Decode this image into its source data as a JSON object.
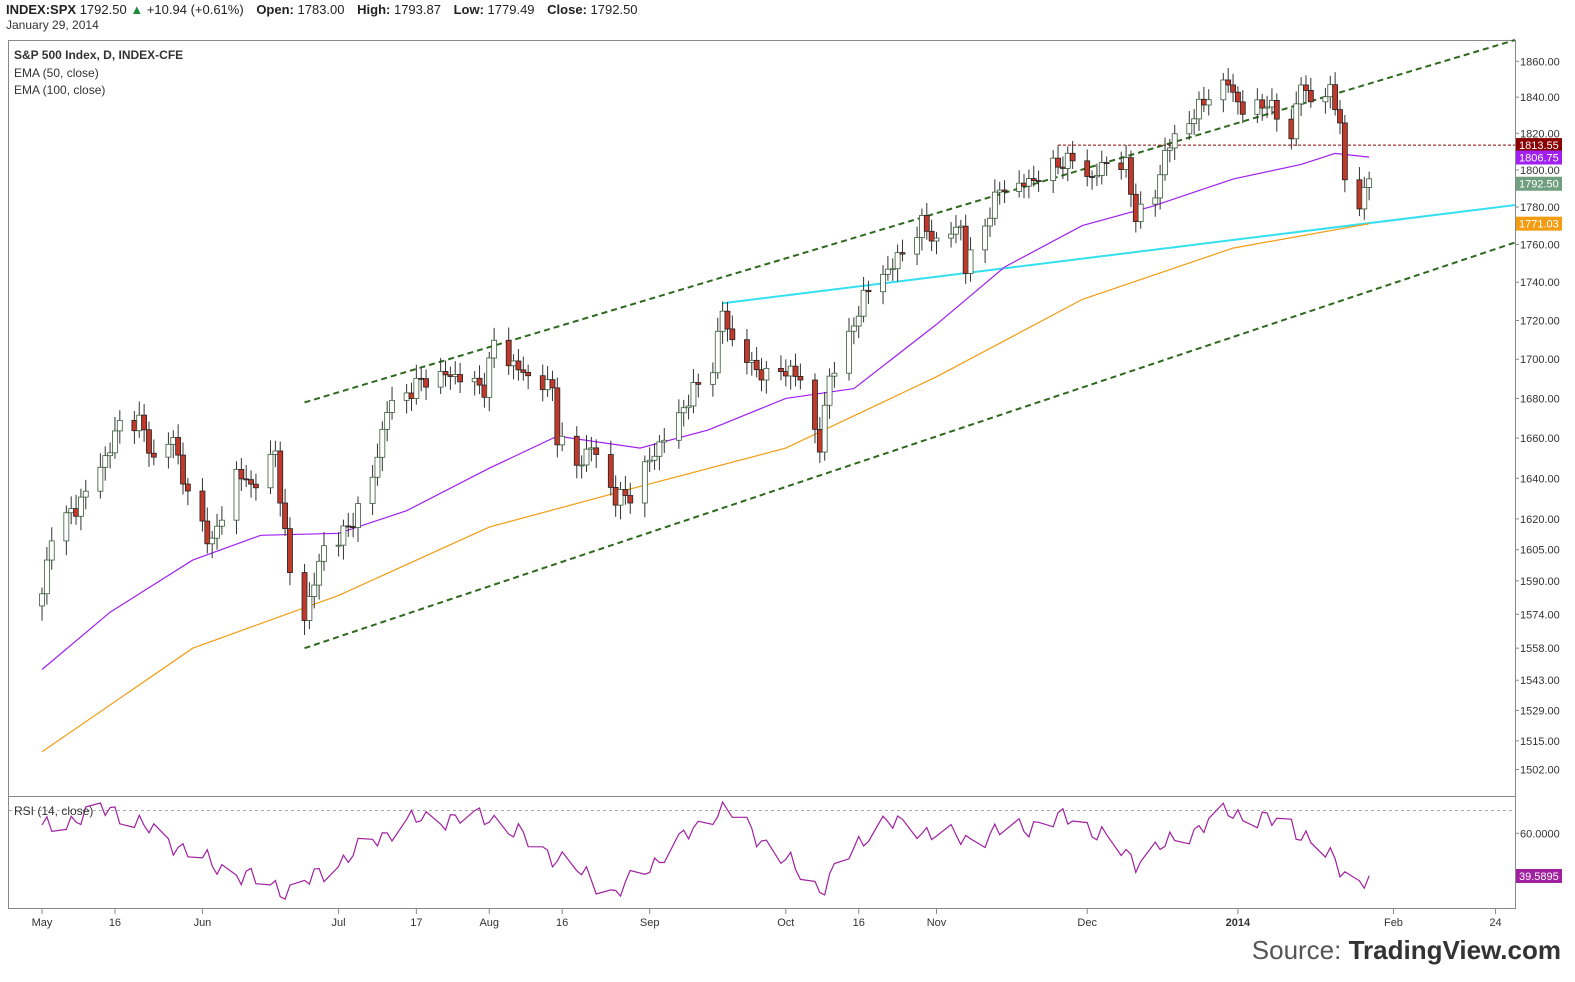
{
  "header": {
    "symbol": "INDEX:SPX",
    "last": "1792.50",
    "change": "+10.94 (+0.61%)",
    "open_label": "Open:",
    "open": "1783.00",
    "high_label": "High:",
    "high": "1793.87",
    "low_label": "Low:",
    "low": "1779.49",
    "close_label": "Close:",
    "close": "1792.50",
    "date": "January 29, 2014"
  },
  "legend": {
    "title": "S&P 500 Index, D, INDEX-CFE",
    "ema50": "EMA (50, close)",
    "ema100": "EMA (100, close)",
    "rsi": "RSI (14, close)"
  },
  "source": {
    "prefix": "Source: ",
    "brand": "TradingView.com"
  },
  "colors": {
    "up": "#ffffff",
    "up_border": "#3a5a3a",
    "down": "#c0392b",
    "ema50": "#a020f0",
    "ema100": "#f39c12",
    "trend": "#33e0f0",
    "channel": "#2d6a1e",
    "rsi": "#a020a0",
    "resistance": "#8b0000"
  },
  "chart_data": {
    "type": "candlestick",
    "y_axis": {
      "ticks": [
        "1860.00",
        "1840.00",
        "1820.00",
        "1800.00",
        "1780.00",
        "1760.00",
        "1740.00",
        "1720.00",
        "1700.00",
        "1680.00",
        "1660.00",
        "1640.00",
        "1620.00",
        "1605.00",
        "1590.00",
        "1574.00",
        "1558.00",
        "1543.00",
        "1529.00",
        "1515.00",
        "1502.00"
      ],
      "scale": "log",
      "range": [
        1490,
        1872
      ]
    },
    "x_axis": {
      "labels": [
        "May",
        "16",
        "Jun",
        "Jul",
        "17",
        "Aug",
        "16",
        "Sep",
        "Oct",
        "16",
        "Nov",
        "Dec",
        "2014",
        "Feb",
        "24"
      ],
      "bold_label": "2014"
    },
    "price_labels": [
      {
        "value": "1813.55",
        "color": "#8b0000"
      },
      {
        "value": "1806.75",
        "color": "#a020f0"
      },
      {
        "value": "1792.50",
        "color": "#6f9f7f"
      },
      {
        "value": "1771.03",
        "color": "#f39c12"
      }
    ],
    "rsi_axis": {
      "ticks": [
        "60.0000"
      ],
      "current": "39.5895",
      "overbought": 70
    },
    "close_path": [
      [
        "2013-05-01",
        1582
      ],
      [
        "2013-05-03",
        1614
      ],
      [
        "2013-05-08",
        1625
      ],
      [
        "2013-05-14",
        1650
      ],
      [
        "2013-05-17",
        1667
      ],
      [
        "2013-05-21",
        1669
      ],
      [
        "2013-05-24",
        1649
      ],
      [
        "2013-05-28",
        1660
      ],
      [
        "2013-05-31",
        1631
      ],
      [
        "2013-06-05",
        1608
      ],
      [
        "2013-06-10",
        1643
      ],
      [
        "2013-06-13",
        1636
      ],
      [
        "2013-06-18",
        1652
      ],
      [
        "2013-06-21",
        1593
      ],
      [
        "2013-06-24",
        1573
      ],
      [
        "2013-06-28",
        1606
      ],
      [
        "2013-07-03",
        1615
      ],
      [
        "2013-07-08",
        1640
      ],
      [
        "2013-07-11",
        1675
      ],
      [
        "2013-07-15",
        1682
      ],
      [
        "2013-07-18",
        1689
      ],
      [
        "2013-07-23",
        1692
      ],
      [
        "2013-07-26",
        1691
      ],
      [
        "2013-07-31",
        1685
      ],
      [
        "2013-08-02",
        1709
      ],
      [
        "2013-08-06",
        1697
      ],
      [
        "2013-08-09",
        1691
      ],
      [
        "2013-08-14",
        1685
      ],
      [
        "2013-08-15",
        1661
      ],
      [
        "2013-08-19",
        1646
      ],
      [
        "2013-08-22",
        1656
      ],
      [
        "2013-08-27",
        1630
      ],
      [
        "2013-08-30",
        1632
      ],
      [
        "2013-09-04",
        1653
      ],
      [
        "2013-09-09",
        1671
      ],
      [
        "2013-09-12",
        1684
      ],
      [
        "2013-09-16",
        1697
      ],
      [
        "2013-09-18",
        1725
      ],
      [
        "2013-09-20",
        1709
      ],
      [
        "2013-09-24",
        1697
      ],
      [
        "2013-09-27",
        1691
      ],
      [
        "2013-10-01",
        1695
      ],
      [
        "2013-10-04",
        1690
      ],
      [
        "2013-10-08",
        1655
      ],
      [
        "2013-10-10",
        1692
      ],
      [
        "2013-10-14",
        1710
      ],
      [
        "2013-10-17",
        1733
      ],
      [
        "2013-10-21",
        1744
      ],
      [
        "2013-10-24",
        1752
      ],
      [
        "2013-10-29",
        1771
      ],
      [
        "2013-11-01",
        1761
      ],
      [
        "2013-11-06",
        1770
      ],
      [
        "2013-11-07",
        1747
      ],
      [
        "2013-11-11",
        1771
      ],
      [
        "2013-11-14",
        1790
      ],
      [
        "2013-11-18",
        1791
      ],
      [
        "2013-11-21",
        1795
      ],
      [
        "2013-11-25",
        1802
      ],
      [
        "2013-11-29",
        1806
      ],
      [
        "2013-12-03",
        1795
      ],
      [
        "2013-12-06",
        1805
      ],
      [
        "2013-12-10",
        1802
      ],
      [
        "2013-12-12",
        1775
      ],
      [
        "2013-12-16",
        1786
      ],
      [
        "2013-12-18",
        1810
      ],
      [
        "2013-12-23",
        1827
      ],
      [
        "2013-12-27",
        1841
      ],
      [
        "2013-12-31",
        1848
      ],
      [
        "2014-01-03",
        1832
      ],
      [
        "2014-01-08",
        1837
      ],
      [
        "2014-01-13",
        1819
      ],
      [
        "2014-01-15",
        1848
      ],
      [
        "2014-01-17",
        1838
      ],
      [
        "2014-01-21",
        1843
      ],
      [
        "2014-01-23",
        1828
      ],
      [
        "2014-01-24",
        1790
      ],
      [
        "2014-01-27",
        1781
      ],
      [
        "2014-01-28",
        1792
      ],
      [
        "2014-01-29",
        1793
      ]
    ],
    "ema50": [
      [
        "2013-05-01",
        1548
      ],
      [
        "2013-05-15",
        1575
      ],
      [
        "2013-06-01",
        1600
      ],
      [
        "2013-06-15",
        1612
      ],
      [
        "2013-07-01",
        1613
      ],
      [
        "2013-07-15",
        1624
      ],
      [
        "2013-08-01",
        1645
      ],
      [
        "2013-08-15",
        1661
      ],
      [
        "2013-09-01",
        1655
      ],
      [
        "2013-09-15",
        1664
      ],
      [
        "2013-10-01",
        1680
      ],
      [
        "2013-10-15",
        1685
      ],
      [
        "2013-11-01",
        1718
      ],
      [
        "2013-11-15",
        1748
      ],
      [
        "2013-12-01",
        1770
      ],
      [
        "2013-12-15",
        1780
      ],
      [
        "2014-01-01",
        1795
      ],
      [
        "2014-01-15",
        1803
      ],
      [
        "2014-01-22",
        1809
      ],
      [
        "2014-01-29",
        1807
      ]
    ],
    "ema100": [
      [
        "2013-05-01",
        1510
      ],
      [
        "2013-06-01",
        1558
      ],
      [
        "2013-07-01",
        1583
      ],
      [
        "2013-08-01",
        1616
      ],
      [
        "2013-09-01",
        1636
      ],
      [
        "2013-10-01",
        1655
      ],
      [
        "2013-11-01",
        1691
      ],
      [
        "2013-12-01",
        1731
      ],
      [
        "2014-01-01",
        1758
      ],
      [
        "2014-01-29",
        1771
      ]
    ],
    "channel_lines": [
      {
        "from": [
          "2013-06-24",
          1678
        ],
        "to": [
          "2014-02-28",
          1872
        ]
      },
      {
        "from": [
          "2013-06-24",
          1558
        ],
        "to": [
          "2014-02-28",
          1761
        ]
      }
    ],
    "trend_line": {
      "from": [
        "2013-09-18",
        1729
      ],
      "to": [
        "2014-02-28",
        1781
      ]
    },
    "resistance_line": {
      "from": [
        "2013-11-26",
        1813.55
      ],
      "to": [
        "2014-02-28",
        1813.55
      ]
    },
    "rsi": [
      [
        "2013-05-01",
        62
      ],
      [
        "2013-05-15",
        72
      ],
      [
        "2013-06-05",
        45
      ],
      [
        "2013-06-21",
        32
      ],
      [
        "2013-07-01",
        46
      ],
      [
        "2013-07-15",
        66
      ],
      [
        "2013-08-01",
        68
      ],
      [
        "2013-08-15",
        48
      ],
      [
        "2013-08-27",
        31
      ],
      [
        "2013-09-18",
        73
      ],
      [
        "2013-10-08",
        33
      ],
      [
        "2013-10-20",
        66
      ],
      [
        "2013-11-07",
        57
      ],
      [
        "2013-11-29",
        68
      ],
      [
        "2013-12-12",
        47
      ],
      [
        "2013-12-31",
        70
      ],
      [
        "2014-01-13",
        64
      ],
      [
        "2014-01-24",
        42
      ],
      [
        "2014-01-27",
        36
      ],
      [
        "2014-01-29",
        39.59
      ]
    ]
  }
}
